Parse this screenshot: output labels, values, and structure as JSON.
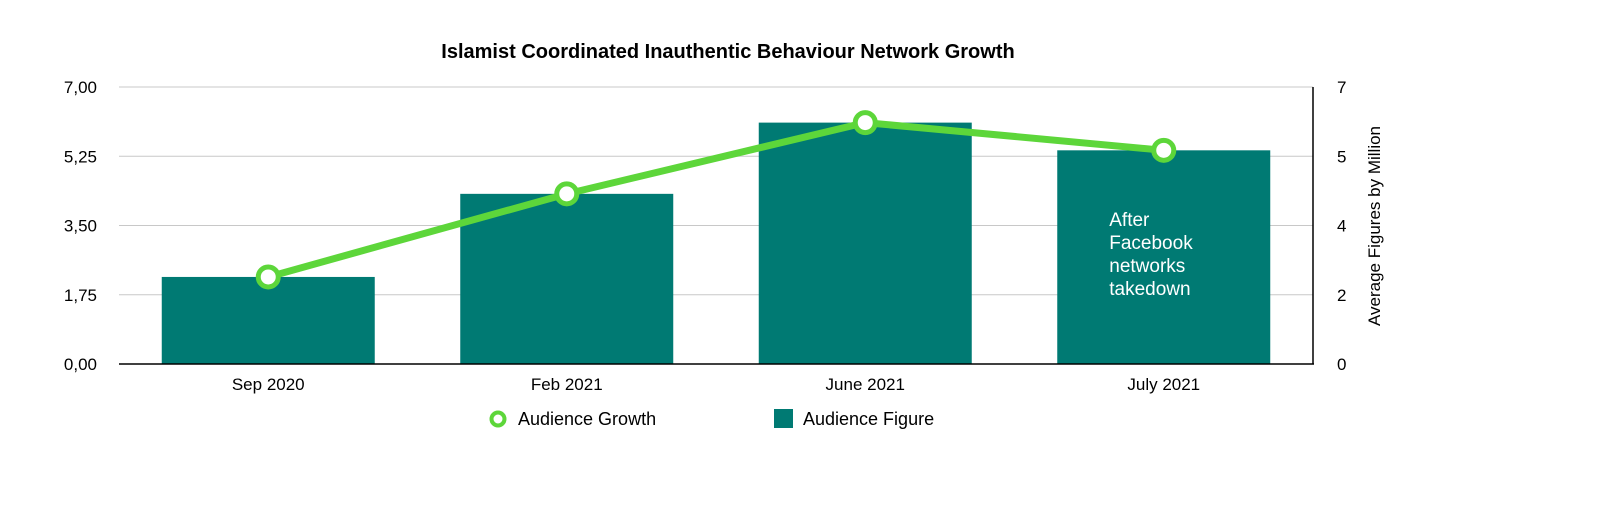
{
  "chart_data": {
    "type": "bar",
    "title": "Islamist Coordinated Inauthentic Behaviour Network Growth",
    "categories": [
      "Sep 2020",
      "Feb 2021",
      "June 2021",
      "July 2021"
    ],
    "y_left": {
      "ticks": [
        "0,00",
        "1,75",
        "3,50",
        "5,25",
        "7,00"
      ],
      "ylim": [
        0,
        7
      ]
    },
    "y_right": {
      "label": "Average Figures by Million",
      "ticks": [
        "0",
        "2",
        "4",
        "5",
        "7"
      ],
      "ylim": [
        0,
        7
      ]
    },
    "series": [
      {
        "name": "Audience Figure",
        "kind": "bar",
        "axis": "left",
        "color": "#007a73",
        "values": [
          2.2,
          4.3,
          6.1,
          5.4
        ]
      },
      {
        "name": "Audience Growth",
        "kind": "line",
        "axis": "left",
        "color": "#5dd63a",
        "values": [
          2.2,
          4.3,
          6.1,
          5.4
        ]
      }
    ],
    "annotation": {
      "category": "July 2021",
      "lines": [
        "After",
        "Facebook",
        "networks",
        "takedown"
      ]
    },
    "legend": {
      "position": "bottom-center",
      "order": [
        "Audience Growth",
        "Audience Figure"
      ]
    },
    "grid": true
  }
}
